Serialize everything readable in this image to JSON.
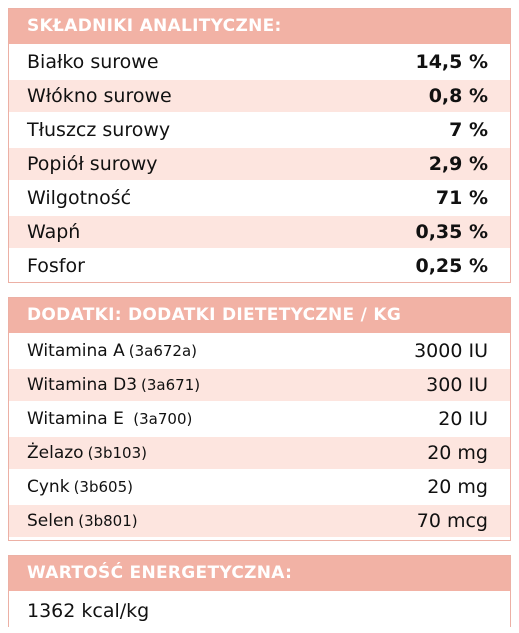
{
  "analytical": {
    "title": "SKŁADNIKI ANALITYCZNE:",
    "rows": [
      {
        "label": "Białko surowe",
        "value": "14,5 %"
      },
      {
        "label": "Włókno surowe",
        "value": "0,8 %"
      },
      {
        "label": "Tłuszcz surowy",
        "value": "7 %"
      },
      {
        "label": "Popiół surowy",
        "value": "2,9 %"
      },
      {
        "label": "Wilgotność",
        "value": "71 %"
      },
      {
        "label": "Wapń",
        "value": "0,35 %"
      },
      {
        "label": "Fosfor",
        "value": "0,25 %"
      }
    ]
  },
  "additives": {
    "title": "DODATKI: DODATKI DIETETYCZNE / KG",
    "rows": [
      {
        "label": "Witamina A",
        "code": "(3a672a)",
        "value": "3000 IU"
      },
      {
        "label": "Witamina D3",
        "code": "(3a671)",
        "value": "300 IU"
      },
      {
        "label": "Witamina E ",
        "code": "(3a700)",
        "value": "20 IU"
      },
      {
        "label": "Żelazo",
        "code": "(3b103)",
        "value": "20 mg"
      },
      {
        "label": "Cynk",
        "code": "(3b605)",
        "value": "20 mg"
      },
      {
        "label": "Selen",
        "code": "(3b801)",
        "value": "70 mcg"
      }
    ]
  },
  "energy": {
    "title": "WARTOŚĆ ENERGETYCZNA:",
    "value": "1362 kcal/kg"
  },
  "colors": {
    "header_bg": "#f2b2a5",
    "row_alt_bg": "#fde5df"
  }
}
